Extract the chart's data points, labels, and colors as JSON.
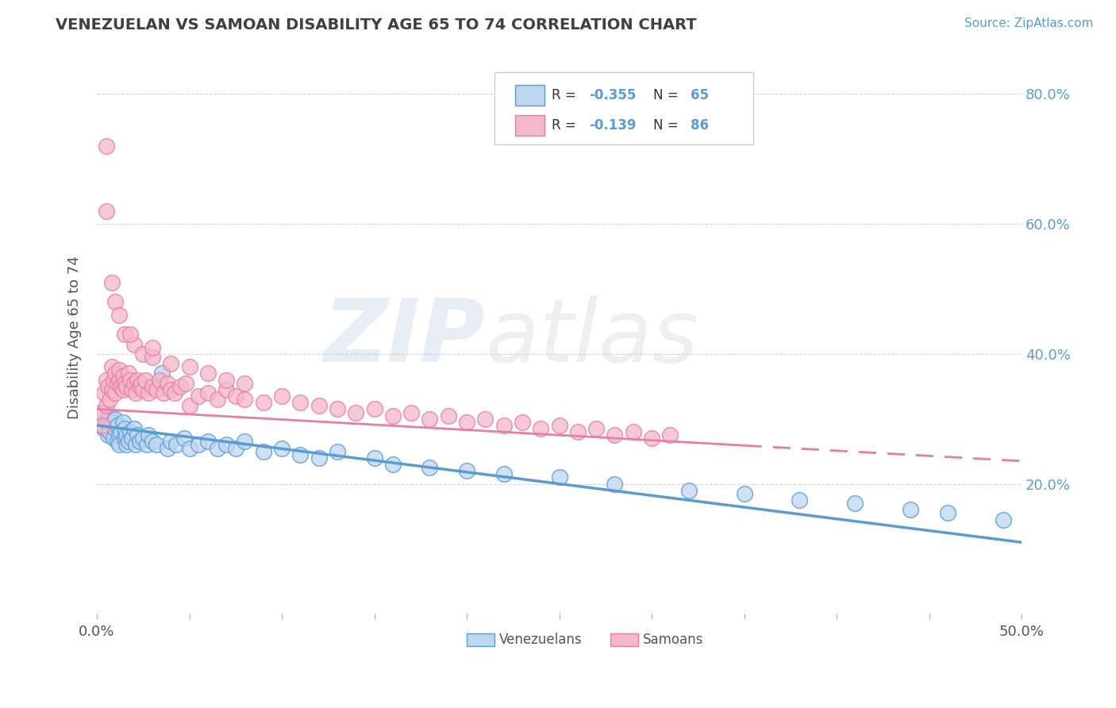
{
  "title": "VENEZUELAN VS SAMOAN DISABILITY AGE 65 TO 74 CORRELATION CHART",
  "source_text": "Source: ZipAtlas.com",
  "ylabel": "Disability Age 65 to 74",
  "xlim": [
    0.0,
    0.5
  ],
  "ylim": [
    0.0,
    0.85
  ],
  "xtick_positions": [
    0.0,
    0.05,
    0.1,
    0.15,
    0.2,
    0.25,
    0.3,
    0.35,
    0.4,
    0.45,
    0.5
  ],
  "xtick_labels": [
    "0.0%",
    "",
    "",
    "",
    "",
    "",
    "",
    "",
    "",
    "",
    "50.0%"
  ],
  "ytick_positions": [
    0.0,
    0.2,
    0.4,
    0.6,
    0.8
  ],
  "ytick_labels": [
    "",
    "20.0%",
    "40.0%",
    "60.0%",
    "80.0%"
  ],
  "legend_r1": "-0.355",
  "legend_n1": "65",
  "legend_r2": "-0.139",
  "legend_n2": "86",
  "blue_color": "#5b9bd5",
  "pink_color": "#e87ea1",
  "blue_fill": "#bdd7ee",
  "pink_fill": "#f4b8cb",
  "title_color": "#404040",
  "venezuelan_x": [
    0.002,
    0.003,
    0.004,
    0.005,
    0.006,
    0.006,
    0.007,
    0.007,
    0.008,
    0.009,
    0.01,
    0.01,
    0.011,
    0.011,
    0.012,
    0.012,
    0.013,
    0.014,
    0.015,
    0.015,
    0.016,
    0.016,
    0.017,
    0.018,
    0.019,
    0.02,
    0.021,
    0.022,
    0.023,
    0.025,
    0.027,
    0.028,
    0.03,
    0.032,
    0.035,
    0.038,
    0.04,
    0.043,
    0.047,
    0.05,
    0.055,
    0.06,
    0.065,
    0.07,
    0.075,
    0.08,
    0.09,
    0.1,
    0.11,
    0.12,
    0.13,
    0.15,
    0.16,
    0.18,
    0.2,
    0.22,
    0.25,
    0.28,
    0.32,
    0.35,
    0.38,
    0.41,
    0.44,
    0.46,
    0.49
  ],
  "venezuelan_y": [
    0.29,
    0.31,
    0.285,
    0.295,
    0.3,
    0.275,
    0.305,
    0.28,
    0.295,
    0.27,
    0.285,
    0.3,
    0.265,
    0.29,
    0.275,
    0.26,
    0.28,
    0.295,
    0.27,
    0.285,
    0.26,
    0.275,
    0.265,
    0.28,
    0.27,
    0.285,
    0.26,
    0.275,
    0.265,
    0.27,
    0.26,
    0.275,
    0.265,
    0.26,
    0.37,
    0.255,
    0.265,
    0.26,
    0.27,
    0.255,
    0.26,
    0.265,
    0.255,
    0.26,
    0.255,
    0.265,
    0.25,
    0.255,
    0.245,
    0.24,
    0.25,
    0.24,
    0.23,
    0.225,
    0.22,
    0.215,
    0.21,
    0.2,
    0.19,
    0.185,
    0.175,
    0.17,
    0.16,
    0.155,
    0.145
  ],
  "samoan_x": [
    0.002,
    0.003,
    0.004,
    0.005,
    0.005,
    0.006,
    0.007,
    0.008,
    0.008,
    0.009,
    0.01,
    0.01,
    0.011,
    0.012,
    0.012,
    0.013,
    0.014,
    0.014,
    0.015,
    0.016,
    0.017,
    0.018,
    0.019,
    0.02,
    0.021,
    0.022,
    0.023,
    0.024,
    0.025,
    0.026,
    0.028,
    0.03,
    0.032,
    0.034,
    0.036,
    0.038,
    0.04,
    0.042,
    0.045,
    0.048,
    0.05,
    0.055,
    0.06,
    0.065,
    0.07,
    0.075,
    0.08,
    0.09,
    0.1,
    0.11,
    0.12,
    0.13,
    0.14,
    0.15,
    0.16,
    0.17,
    0.18,
    0.19,
    0.2,
    0.21,
    0.22,
    0.23,
    0.24,
    0.25,
    0.26,
    0.27,
    0.28,
    0.29,
    0.3,
    0.31,
    0.01,
    0.015,
    0.02,
    0.025,
    0.03,
    0.04,
    0.05,
    0.06,
    0.07,
    0.08,
    0.005,
    0.005,
    0.008,
    0.012,
    0.018,
    0.03
  ],
  "samoan_y": [
    0.31,
    0.29,
    0.34,
    0.32,
    0.36,
    0.35,
    0.33,
    0.345,
    0.38,
    0.36,
    0.37,
    0.34,
    0.355,
    0.36,
    0.375,
    0.35,
    0.345,
    0.365,
    0.355,
    0.35,
    0.37,
    0.36,
    0.345,
    0.355,
    0.34,
    0.36,
    0.35,
    0.355,
    0.345,
    0.36,
    0.34,
    0.35,
    0.345,
    0.36,
    0.34,
    0.355,
    0.345,
    0.34,
    0.35,
    0.355,
    0.32,
    0.335,
    0.34,
    0.33,
    0.345,
    0.335,
    0.33,
    0.325,
    0.335,
    0.325,
    0.32,
    0.315,
    0.31,
    0.315,
    0.305,
    0.31,
    0.3,
    0.305,
    0.295,
    0.3,
    0.29,
    0.295,
    0.285,
    0.29,
    0.28,
    0.285,
    0.275,
    0.28,
    0.27,
    0.275,
    0.48,
    0.43,
    0.415,
    0.4,
    0.395,
    0.385,
    0.38,
    0.37,
    0.36,
    0.355,
    0.72,
    0.62,
    0.51,
    0.46,
    0.43,
    0.41
  ]
}
